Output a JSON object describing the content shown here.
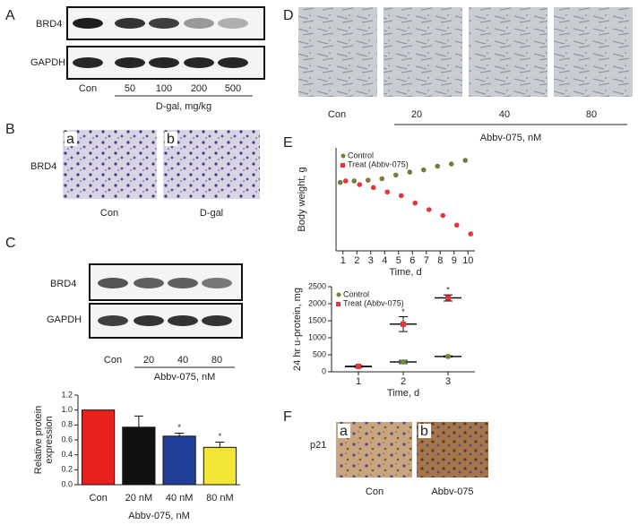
{
  "panels": {
    "A": {
      "label": "A",
      "rows": [
        "BRD4",
        "GAPDH"
      ],
      "lanes": [
        "Con",
        "50",
        "100",
        "200",
        "500"
      ],
      "group": "D-gal, mg/kg"
    },
    "B": {
      "label": "B",
      "row": "BRD4",
      "tags": [
        "a",
        "b"
      ],
      "captions": [
        "Con",
        "D-gal"
      ]
    },
    "C": {
      "label": "C",
      "rows": [
        "BRD4",
        "GAPDH"
      ],
      "lanes": [
        "Con",
        "20",
        "40",
        "80"
      ],
      "group": "Abbv-075, nM"
    },
    "D": {
      "label": "D",
      "captions": [
        "Con",
        "20",
        "40",
        "80"
      ],
      "group": "Abbv-075, nM"
    },
    "E": {
      "label": "E"
    },
    "F": {
      "label": "F",
      "row": "p21",
      "tags": [
        "a",
        "b"
      ],
      "captions": [
        "Con",
        "Abbv-075"
      ]
    }
  },
  "chart_data": [
    {
      "type": "bar",
      "y_label": [
        "Relative protein",
        "expression"
      ],
      "x_label": "Abbv-075, nM",
      "categories": [
        "Con",
        "20 nM",
        "40 nM",
        "80 nM"
      ],
      "values": [
        1.0,
        0.77,
        0.65,
        0.5
      ],
      "errors": [
        0,
        0.15,
        0.04,
        0.07
      ],
      "colors": [
        "#e8211d",
        "#111111",
        "#1f3f9a",
        "#f2e536"
      ],
      "significance": [
        null,
        null,
        "*",
        "*"
      ],
      "ylim": [
        0,
        1.2
      ],
      "yticks": [
        {
          "value": 0,
          "label": "0.0"
        },
        {
          "value": 0.2,
          "label": "0.2"
        },
        {
          "value": 0.4,
          "label": "0.4"
        },
        {
          "value": 0.6,
          "label": "0.6"
        },
        {
          "value": 0.8,
          "label": "0.8"
        },
        {
          "value": 1,
          "label": "1.0"
        },
        {
          "value": 1.2,
          "label": "1.2"
        }
      ]
    },
    {
      "type": "scatter",
      "x_label": "Time, d",
      "y_label": "Body weight, g",
      "x": [
        1,
        2,
        3,
        4,
        5,
        6,
        7,
        8,
        9,
        10
      ],
      "xlim": [
        0.5,
        10.5
      ],
      "xticks": [
        1,
        2,
        3,
        4,
        5,
        6,
        7,
        8,
        9,
        10
      ],
      "ylim": [
        16,
        30
      ],
      "series": [
        {
          "name": "Control",
          "color": "#7a7a3a",
          "values": [
            25.3,
            25.5,
            25.6,
            25.8,
            26.3,
            26.7,
            27.0,
            27.5,
            27.8,
            28.3
          ]
        },
        {
          "name": "Treat (Abbv-075)",
          "color": "#e8333a",
          "values": [
            25.5,
            25.0,
            24.6,
            24.0,
            23.5,
            22.5,
            21.6,
            20.8,
            19.5,
            18.3
          ]
        }
      ]
    },
    {
      "type": "dot",
      "x_label": "Time, d",
      "y_label": "24 hr u-protein, mg",
      "x": [
        1,
        2,
        3
      ],
      "xlim": [
        0.4,
        3.6
      ],
      "xticks": [
        1,
        2,
        3
      ],
      "ylim": [
        0,
        2500
      ],
      "yticks": [
        0,
        500,
        1000,
        1500,
        2000,
        2500
      ],
      "series": [
        {
          "name": "Control",
          "color": "#6e8a3a",
          "values": [
            150,
            290,
            450
          ],
          "errors": [
            20,
            50,
            20
          ]
        },
        {
          "name": "Treat (Abbv-075)",
          "color": "#e8333a",
          "values": [
            160,
            1400,
            2170
          ],
          "errors": [
            20,
            220,
            90
          ],
          "significance": [
            null,
            "*",
            "*"
          ]
        }
      ]
    }
  ]
}
